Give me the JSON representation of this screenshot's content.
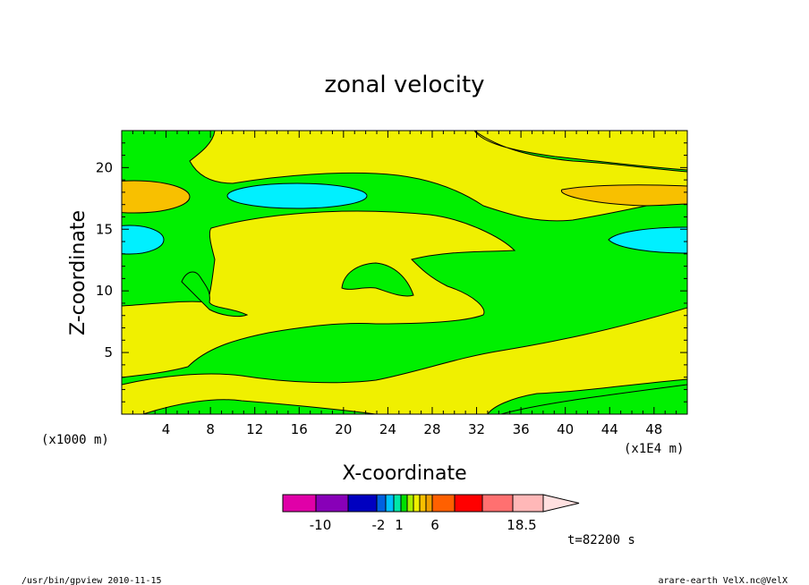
{
  "chart_data": {
    "type": "contour",
    "title": "zonal velocity",
    "xlabel": "X-coordinate",
    "ylabel": "Z-coordinate",
    "x_unit": "(x1E4 m)",
    "y_unit": "(x1000 m)",
    "xlim": [
      0,
      51
    ],
    "ylim": [
      0,
      23
    ],
    "x_ticks": [
      "4",
      "8",
      "12",
      "16",
      "20",
      "24",
      "28",
      "32",
      "36",
      "40",
      "44",
      "48"
    ],
    "y_ticks": [
      "5",
      "10",
      "15",
      "20"
    ],
    "colorbar": {
      "colors": [
        "#e000a8",
        "#8800b8",
        "#0000c0",
        "#0060e0",
        "#00c0ff",
        "#00e8a8",
        "#00e000",
        "#a8f000",
        "#f0f000",
        "#f8c000",
        "#f0a000",
        "#ff6000",
        "#ff0000",
        "#ff7070",
        "#ffb8b8",
        "#ffe0e0"
      ],
      "labels": [
        "-10",
        "-2",
        "1",
        "6",
        "18.5"
      ]
    },
    "time_label": "t=82200 s"
  },
  "footer": {
    "left": "/usr/bin/gpview   2010-11-15",
    "right": "arare-earth_VelX.nc@VelX"
  }
}
